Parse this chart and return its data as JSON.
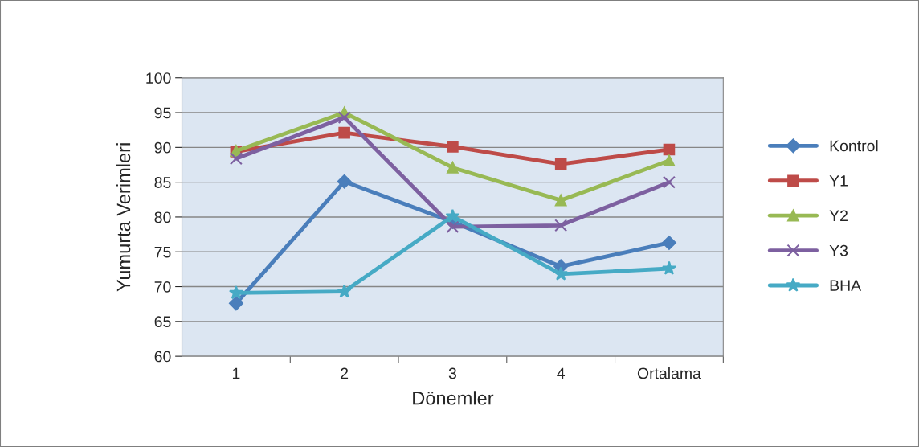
{
  "chart_data": {
    "type": "line",
    "xlabel": "Dönemler",
    "ylabel": "Yumurta Verimleri",
    "categories": [
      "1",
      "2",
      "3",
      "4",
      "Ortalama"
    ],
    "series": [
      {
        "name": "Kontrol",
        "color": "#4a7ebb",
        "marker": "diamond",
        "values": [
          67.6,
          85.1,
          79.3,
          72.9,
          76.3
        ]
      },
      {
        "name": "Y1",
        "color": "#be4b48",
        "marker": "square",
        "values": [
          89.4,
          92.1,
          90.1,
          87.6,
          89.7
        ]
      },
      {
        "name": "Y2",
        "color": "#98b954",
        "marker": "triangle",
        "values": [
          89.5,
          95.0,
          87.1,
          82.4,
          88.1
        ]
      },
      {
        "name": "Y3",
        "color": "#7d60a0",
        "marker": "cross",
        "values": [
          88.4,
          94.3,
          78.6,
          78.8,
          85.0
        ]
      },
      {
        "name": "BHA",
        "color": "#46aac5",
        "marker": "star",
        "values": [
          69.1,
          69.3,
          80.1,
          71.8,
          72.6
        ]
      }
    ],
    "ylim": [
      60,
      100
    ],
    "yticks": [
      60,
      65,
      70,
      75,
      80,
      85,
      90,
      95,
      100
    ],
    "grid": "y",
    "legend": "right"
  }
}
